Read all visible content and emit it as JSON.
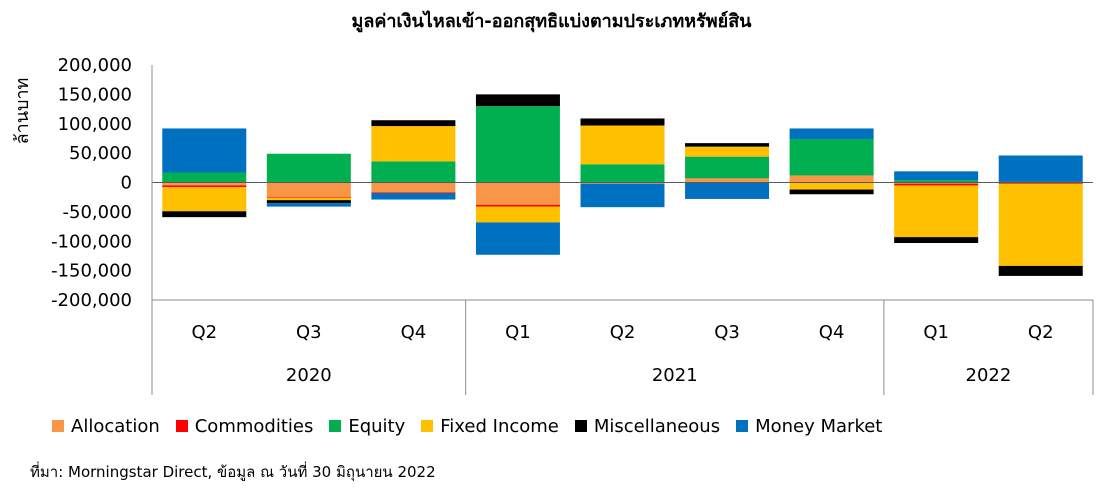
{
  "chart_data": {
    "type": "bar",
    "stacked": true,
    "title": "มูลค่าเงินไหลเข้า-ออกสุทธิแบ่งตามประเภทหรัพย์สิน",
    "ylabel": "ล้านบาท",
    "ylim": [
      -200000,
      200000
    ],
    "yticks": [
      "200,000",
      "150,000",
      "100,000",
      "50,000",
      "0",
      "-50,000",
      "-100,000",
      "-150,000",
      "-200,000"
    ],
    "categories": [
      "Q2",
      "Q3",
      "Q4",
      "Q1",
      "Q2",
      "Q3",
      "Q4",
      "Q1",
      "Q2"
    ],
    "groups": [
      {
        "label": "2020",
        "count": 3
      },
      {
        "label": "2021",
        "count": 4
      },
      {
        "label": "2022",
        "count": 2
      }
    ],
    "series": [
      {
        "name": "Allocation",
        "color": "#F79646",
        "values": [
          -5000,
          -25000,
          -17000,
          -38000,
          -2000,
          7000,
          12000,
          -2000,
          -1000
        ]
      },
      {
        "name": "Commodities",
        "color": "#FF0000",
        "values": [
          -3000,
          -1000,
          -1000,
          -3000,
          0,
          0,
          0,
          -3000,
          -1000
        ]
      },
      {
        "name": "Equity",
        "color": "#00B050",
        "values": [
          17000,
          49000,
          36000,
          130000,
          31000,
          37000,
          62000,
          4000,
          1000
        ]
      },
      {
        "name": "Fixed Income",
        "color": "#FFC000",
        "values": [
          -41000,
          -4000,
          60000,
          -27000,
          66000,
          17000,
          -12000,
          -88000,
          -140000
        ]
      },
      {
        "name": "Miscellaneous",
        "color": "#000000",
        "values": [
          -10000,
          -5000,
          10000,
          20000,
          12000,
          6000,
          -8000,
          -10000,
          -17000
        ]
      },
      {
        "name": "Money Market",
        "color": "#0070C0",
        "values": [
          75000,
          -6000,
          -11000,
          -55000,
          -40000,
          -28000,
          18000,
          15000,
          45000
        ]
      }
    ]
  },
  "source_note": "ที่มา: Morningstar Direct, ข้อมูล ณ วันที่ 30 มิถุนายน 2022"
}
